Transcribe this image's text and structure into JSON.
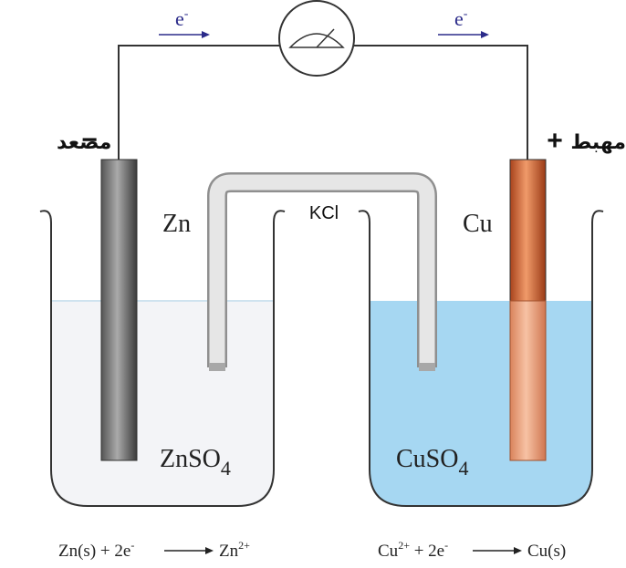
{
  "electron_labels": [
    {
      "base": "e",
      "sup": "-"
    },
    {
      "base": "e",
      "sup": "-"
    }
  ],
  "anode": {
    "sign": "−",
    "label": "مصعد"
  },
  "cathode": {
    "sign": "+",
    "label": "مهبط"
  },
  "electrodes": [
    "Zn",
    "Cu"
  ],
  "salt_bridge": "KCl",
  "solutions": [
    {
      "base": "ZnSO",
      "sub": "4"
    },
    {
      "base": "CuSO",
      "sub": "4"
    }
  ],
  "equations": [
    {
      "left": "Zn(s) + 2e",
      "left_sup": "-",
      "right": "Zn",
      "right_sup": "2+"
    },
    {
      "left": "Cu",
      "left_sup": "2+",
      "left_tail": " + 2e",
      "left_tail_sup": "-",
      "right": "Cu(s)"
    }
  ]
}
